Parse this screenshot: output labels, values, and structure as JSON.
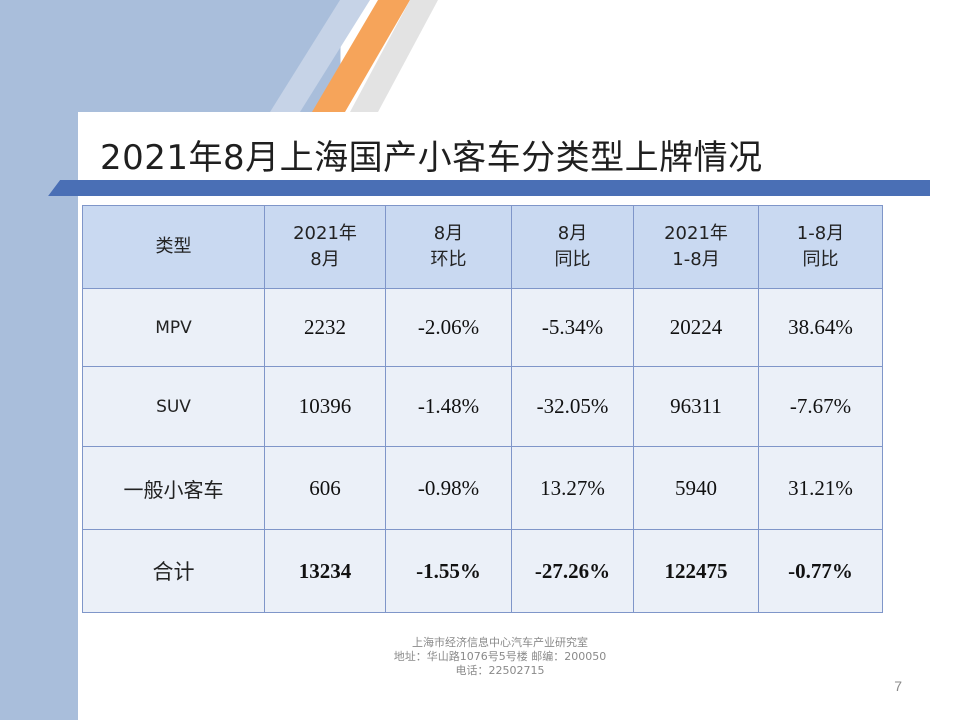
{
  "title": "2021年8月上海国产小客车分类型上牌情况",
  "colors": {
    "background_blue": "#a9bedb",
    "accent_orange": "#f6a45a",
    "header_fill": "#c9d9f1",
    "body_fill": "#ebf0f8",
    "border": "#7f96c9"
  },
  "table": {
    "headers": [
      [
        "类型"
      ],
      [
        "2021年",
        "8月"
      ],
      [
        "8月",
        "环比"
      ],
      [
        "8月",
        "同比"
      ],
      [
        "2021年",
        "1-8月"
      ],
      [
        "1-8月",
        "同比"
      ]
    ],
    "rows": [
      [
        "MPV",
        "2232",
        "-2.06%",
        "-5.34%",
        "20224",
        "38.64%"
      ],
      [
        "SUV",
        "10396",
        "-1.48%",
        "-32.05%",
        "96311",
        "-7.67%"
      ],
      [
        "一般小客车",
        "606",
        "-0.98%",
        "13.27%",
        "5940",
        "31.21%"
      ]
    ],
    "total": [
      "合计",
      "13234",
      "-1.55%",
      "-27.26%",
      "122475",
      "-0.77%"
    ]
  },
  "footer": {
    "line1": "上海市经济信息中心汽车产业研究室",
    "line2": "地址：华山路1076号5号楼   邮编：200050",
    "line3": "电话：22502715"
  },
  "page_number": "7"
}
